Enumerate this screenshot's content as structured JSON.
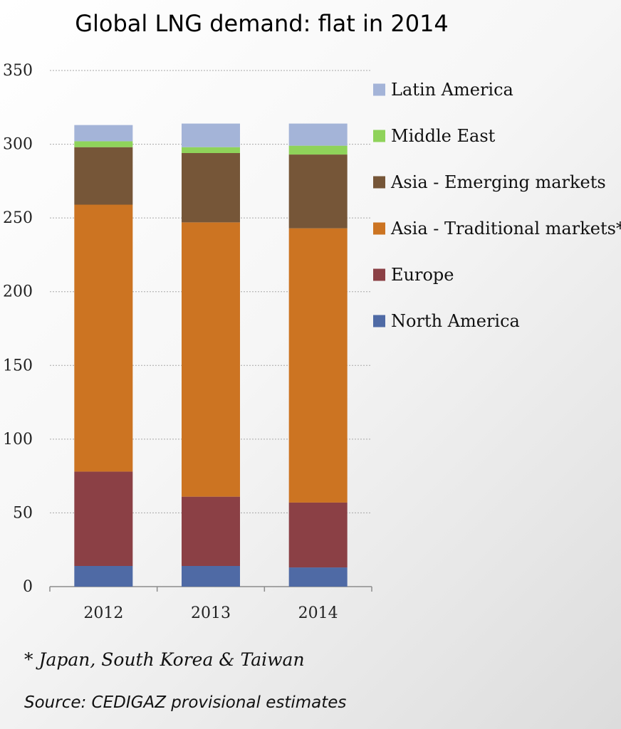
{
  "chart_data": {
    "type": "bar",
    "stacked": true,
    "title": "Global LNG demand: flat in 2014",
    "xlabel": "",
    "ylabel": "",
    "categories": [
      "2012",
      "2013",
      "2014"
    ],
    "ylim": [
      0,
      350
    ],
    "yticks": [
      0,
      50,
      100,
      150,
      200,
      250,
      300,
      350
    ],
    "grid": true,
    "legend_position": "right",
    "series": [
      {
        "name": "North America",
        "color": "#4f6aa5",
        "values": [
          14,
          14,
          13
        ]
      },
      {
        "name": "Europe",
        "color": "#8b4045",
        "values": [
          64,
          47,
          44
        ]
      },
      {
        "name": "Asia - Traditional markets*",
        "color": "#cc7422",
        "values": [
          181,
          186,
          186
        ]
      },
      {
        "name": "Asia - Emerging markets",
        "color": "#765638",
        "values": [
          39,
          47,
          50
        ]
      },
      {
        "name": "Middle East",
        "color": "#8fd35a",
        "values": [
          4,
          4,
          6
        ]
      },
      {
        "name": "Latin America",
        "color": "#a4b4d8",
        "values": [
          11,
          16,
          15
        ]
      }
    ]
  },
  "footnote": "* Japan, South Korea & Taiwan",
  "source": "Source: CEDIGAZ provisional estimates"
}
